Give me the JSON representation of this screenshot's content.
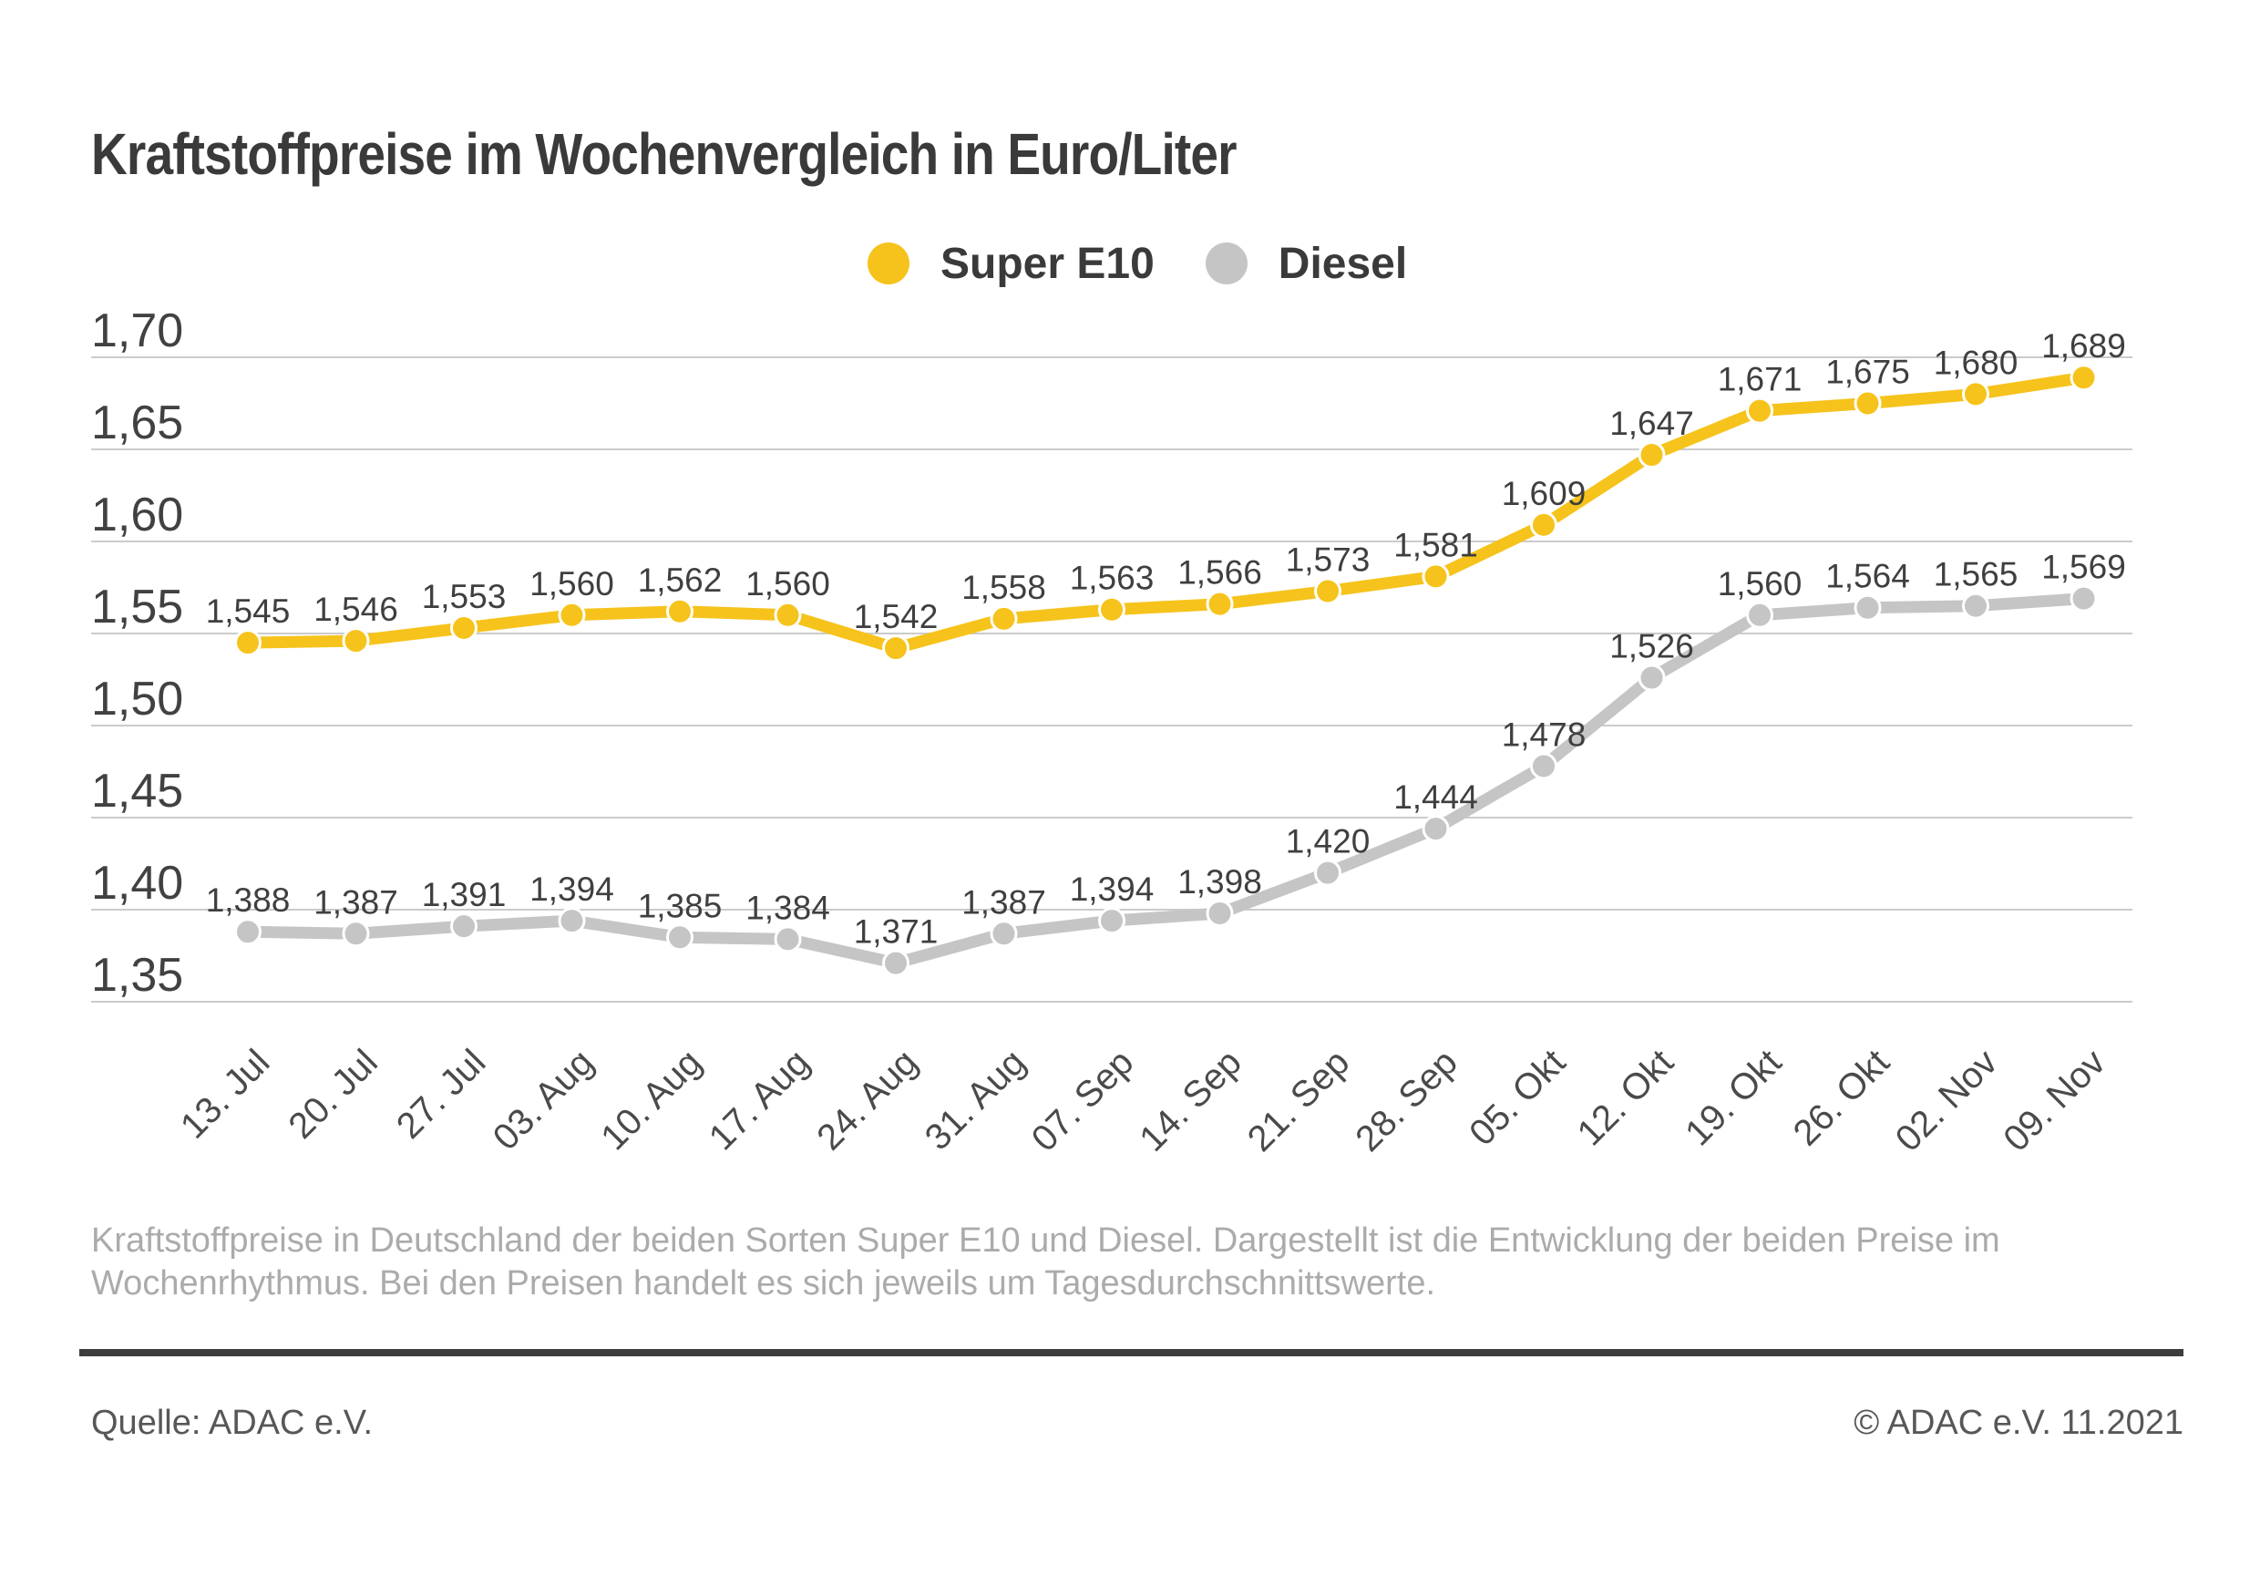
{
  "title": "Kraftstoffpreise im Wochenvergleich in Euro/Liter",
  "chart_data": {
    "type": "line",
    "categories": [
      "13. Jul",
      "20. Jul",
      "27. Jul",
      "03. Aug",
      "10. Aug",
      "17. Aug",
      "24. Aug",
      "31. Aug",
      "07. Sep",
      "14. Sep",
      "21. Sep",
      "28. Sep",
      "05. Okt",
      "12. Okt",
      "19. Okt",
      "26. Okt",
      "02. Nov",
      "09. Nov"
    ],
    "series": [
      {
        "name": "Super E10",
        "color": "#F6C31C",
        "values": [
          1.545,
          1.546,
          1.553,
          1.56,
          1.562,
          1.56,
          1.542,
          1.558,
          1.563,
          1.566,
          1.573,
          1.581,
          1.609,
          1.647,
          1.671,
          1.675,
          1.68,
          1.689
        ]
      },
      {
        "name": "Diesel",
        "color": "#C5C5C5",
        "values": [
          1.388,
          1.387,
          1.391,
          1.394,
          1.385,
          1.384,
          1.371,
          1.387,
          1.394,
          1.398,
          1.42,
          1.444,
          1.478,
          1.526,
          1.56,
          1.564,
          1.565,
          1.569
        ]
      }
    ],
    "ylabel": "Euro/Liter",
    "ylim": [
      1.35,
      1.7
    ],
    "ytick_step": 0.05,
    "ytick_labels": [
      "1,70",
      "1,65",
      "1,60",
      "1,55",
      "1,50",
      "1,45",
      "1,40",
      "1,35"
    ],
    "grid": true,
    "legend_position": "top-center",
    "value_label_format": "german-decimal-comma-3",
    "colors": {
      "gridline": "#CBCBCB",
      "tick_text": "#414141",
      "x_tick_text": "#4A4A4A",
      "value_label_text": "#3F3F3F"
    }
  },
  "caption": {
    "line1": "Kraftstoffpreise in Deutschland der beiden Sorten Super E10 und Diesel. Dargestellt ist die Entwicklung der beiden Preise im",
    "line2": "Wochenrhythmus. Bei den Preisen handelt es sich jeweils um Tagesdurchschnittswerte."
  },
  "footer": {
    "source": "Quelle: ADAC e.V.",
    "copyright": "© ADAC e.V. 11.2021"
  }
}
